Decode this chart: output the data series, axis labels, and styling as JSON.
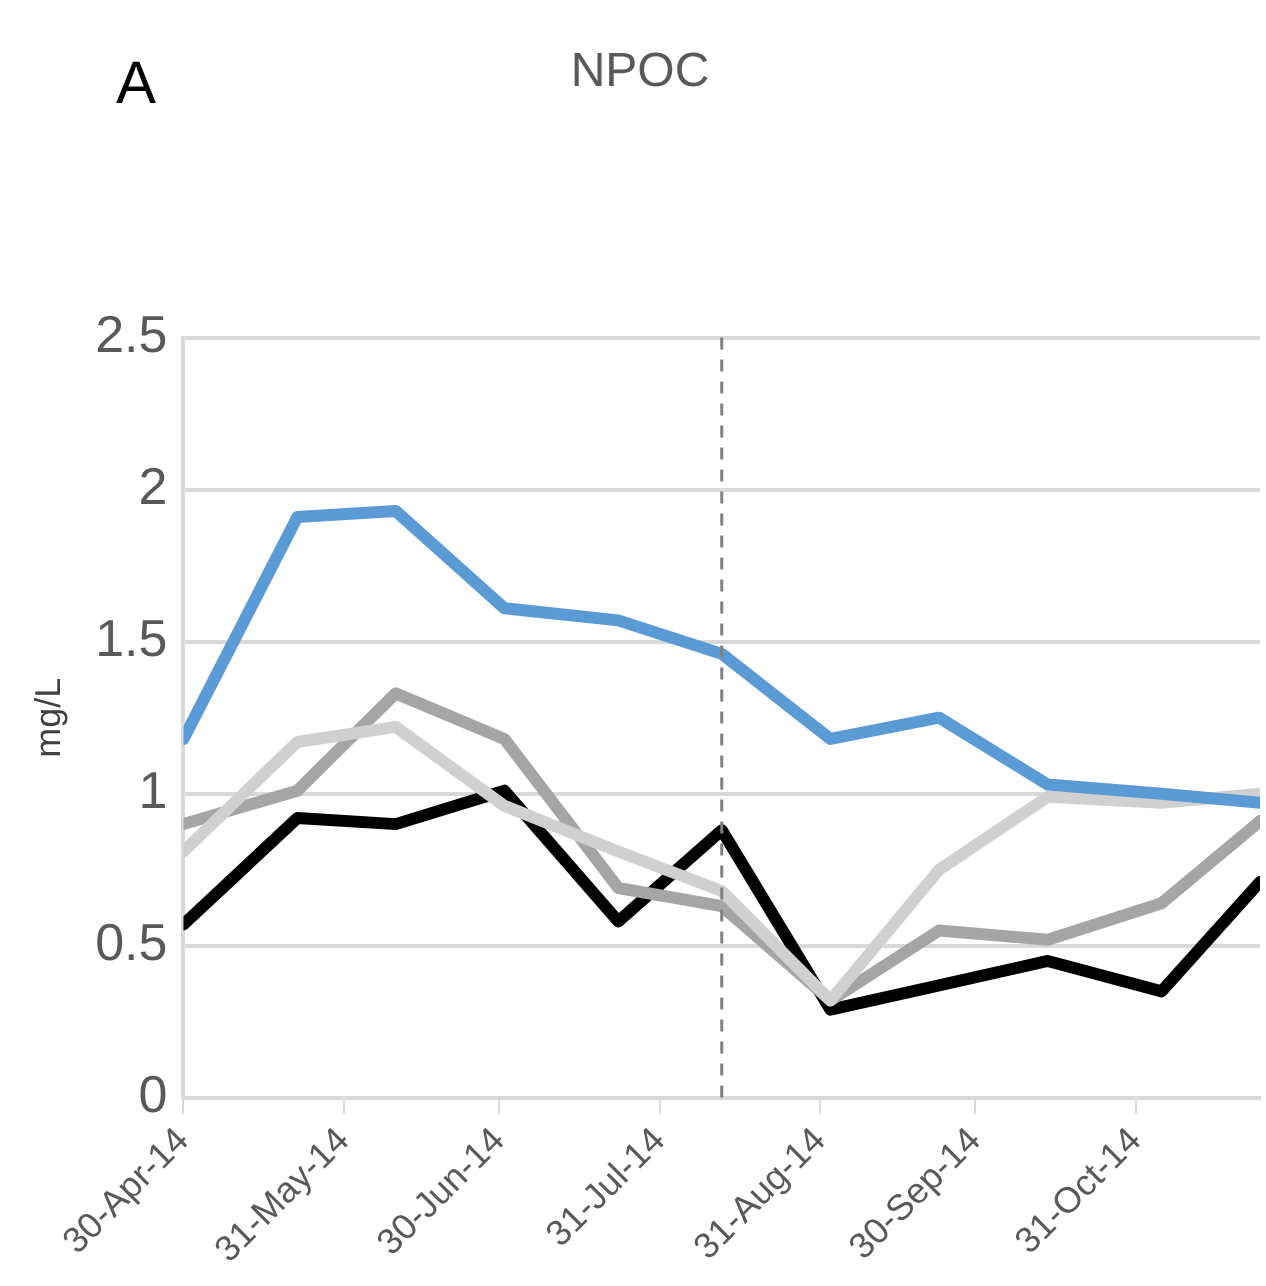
{
  "chart_data": {
    "type": "line",
    "title": "NPOC",
    "ylabel": "mg/L",
    "annotations": [
      "A"
    ],
    "x": [
      "2014-04-30",
      "2014-05-22",
      "2014-06-10",
      "2014-07-01",
      "2014-07-23",
      "2014-08-12",
      "2014-09-02",
      "2014-09-23",
      "2014-10-14",
      "2014-11-05",
      "2014-11-24"
    ],
    "series": [
      {
        "color": "#5b9bd5",
        "values": [
          1.18,
          1.91,
          1.93,
          1.61,
          1.57,
          1.46,
          1.18,
          1.25,
          1.03,
          1.0,
          0.97
        ]
      },
      {
        "color": "#d0d0d0",
        "values": [
          0.81,
          1.17,
          1.22,
          0.96,
          0.81,
          0.68,
          0.32,
          0.75,
          0.99,
          0.97,
          1.0
        ]
      },
      {
        "color": "#a5a5a5",
        "values": [
          0.9,
          1.01,
          1.33,
          1.18,
          0.69,
          0.63,
          0.32,
          0.55,
          0.52,
          0.64,
          0.91
        ]
      },
      {
        "color": "#000000",
        "values": [
          0.57,
          0.92,
          0.9,
          1.01,
          0.58,
          0.88,
          0.29,
          0.37,
          0.45,
          0.35,
          0.71
        ]
      }
    ],
    "xlim": [
      "2014-04-30",
      "2014-11-24"
    ],
    "xticks": [
      {
        "value": "2014-04-30",
        "label": "30-Apr-14"
      },
      {
        "value": "2014-05-31",
        "label": "31-May-14"
      },
      {
        "value": "2014-06-30",
        "label": "30-Jun-14"
      },
      {
        "value": "2014-07-31",
        "label": "31-Jul-14"
      },
      {
        "value": "2014-08-31",
        "label": "31-Aug-14"
      },
      {
        "value": "2014-09-30",
        "label": "30-Sep-14"
      },
      {
        "value": "2014-10-31",
        "label": "31-Oct-14"
      }
    ],
    "ylim": [
      0,
      2.5
    ],
    "yticks": [
      0,
      0.5,
      1,
      1.5,
      2,
      2.5
    ],
    "ref_lines": [
      {
        "axis": "x",
        "value": "2014-08-12",
        "color": "#808080",
        "line_style": "dashed"
      }
    ],
    "grid": "y",
    "legend": false,
    "marker": "none",
    "line_style": "solid"
  }
}
